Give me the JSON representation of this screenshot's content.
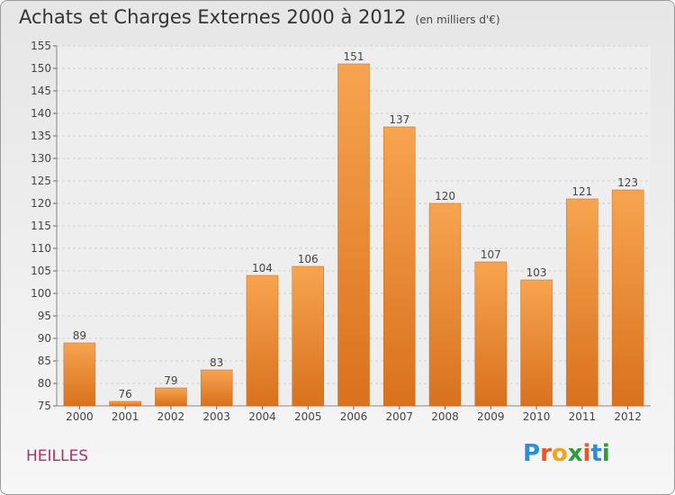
{
  "title": "Achats et Charges Externes 2000 à 2012",
  "subtitle": "(en milliers d'€)",
  "commune": "HEILLES",
  "logo": {
    "letters": [
      "P",
      "r",
      "o",
      "x",
      "i",
      "t",
      "i"
    ],
    "colors": [
      "#2a8fd6",
      "#e8542b",
      "#f2a31b",
      "#2e9b3e",
      "#e8542b",
      "#2a8fd6",
      "#2e9b3e"
    ]
  },
  "chart_data": {
    "type": "bar",
    "categories": [
      "2000",
      "2001",
      "2002",
      "2003",
      "2004",
      "2005",
      "2006",
      "2007",
      "2008",
      "2009",
      "2010",
      "2011",
      "2012"
    ],
    "values": [
      89,
      76,
      79,
      83,
      104,
      106,
      151,
      137,
      120,
      107,
      103,
      121,
      123
    ],
    "ylim": [
      75,
      155
    ],
    "ytick_step": 5,
    "grid": true,
    "bar_color": "#f0922e"
  }
}
